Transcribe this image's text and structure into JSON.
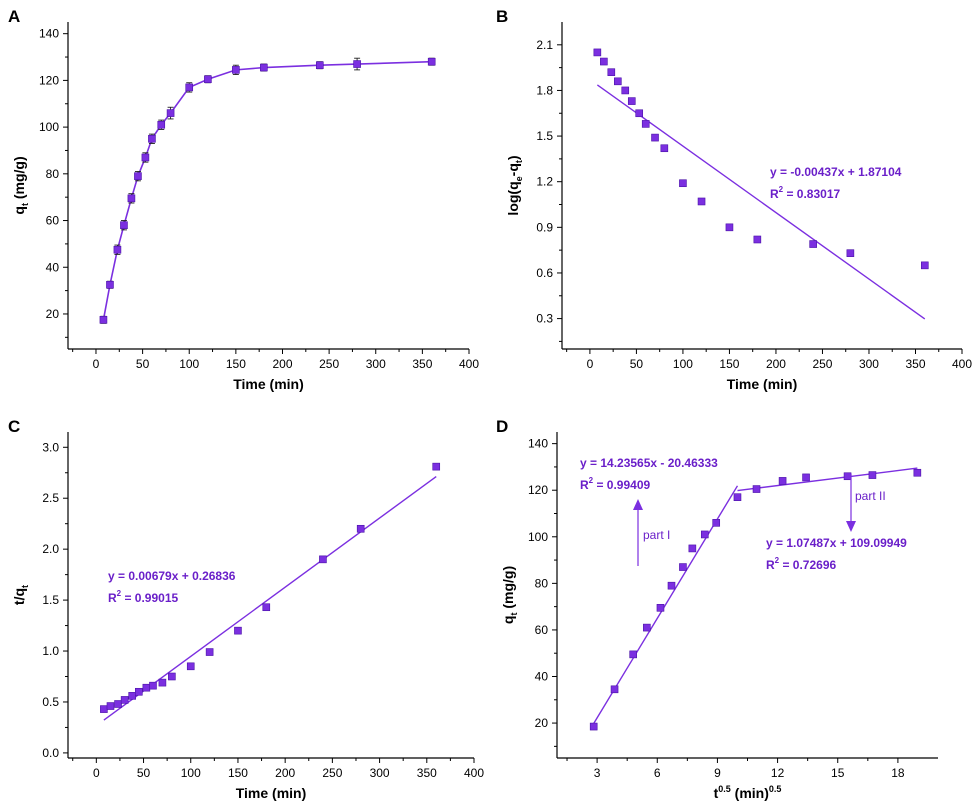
{
  "chart_data": [
    {
      "panel": "A",
      "type": "line",
      "xlabel": "Time (min)",
      "ylabel": "q",
      "ylabel_sub": "t",
      "ylabel_tail": " (mg/g)",
      "xlim": [
        -30,
        400
      ],
      "ylim": [
        5,
        145
      ],
      "xticks": [
        0,
        50,
        100,
        150,
        200,
        250,
        300,
        350,
        400
      ],
      "yticks": [
        20,
        40,
        60,
        80,
        100,
        120,
        140
      ],
      "x": [
        8,
        15,
        23,
        30,
        38,
        45,
        53,
        60,
        70,
        80,
        100,
        120,
        150,
        180,
        240,
        280,
        360
      ],
      "y": [
        17.5,
        32.5,
        47.5,
        58,
        69.5,
        79,
        87,
        95,
        101,
        106,
        117,
        120.5,
        124.5,
        125.5,
        126.5,
        127,
        128
      ],
      "err": [
        1.5,
        1.5,
        2,
        2,
        2,
        2,
        2,
        2,
        2,
        2.5,
        2,
        1.5,
        2,
        1.5,
        1.5,
        2.5,
        1.5
      ],
      "color": "#7b2fe0"
    },
    {
      "panel": "B",
      "type": "scatter",
      "xlabel": "Time (min)",
      "ylabel": "log(q",
      "ylabel_sub": "e",
      "ylabel_mid": "-q",
      "ylabel_sub2": "t",
      "ylabel_tail": ")",
      "xlim": [
        -30,
        400
      ],
      "ylim": [
        0.1,
        2.25
      ],
      "xticks": [
        0,
        50,
        100,
        150,
        200,
        250,
        300,
        350,
        400
      ],
      "yticks": [
        0.3,
        0.6,
        0.9,
        1.2,
        1.5,
        1.8,
        2.1
      ],
      "x": [
        8,
        15,
        23,
        30,
        38,
        45,
        53,
        60,
        70,
        80,
        100,
        120,
        150,
        180,
        240,
        280,
        360
      ],
      "y": [
        2.05,
        1.99,
        1.92,
        1.86,
        1.8,
        1.73,
        1.65,
        1.58,
        1.49,
        1.42,
        1.19,
        1.07,
        0.9,
        0.82,
        0.79,
        0.73,
        0.65
      ],
      "fit": {
        "x": [
          8,
          360
        ],
        "slope": -0.00437,
        "intercept": 1.87104
      },
      "equation": "y = -0.00437x + 1.87104",
      "r2_label": "R",
      "r2_value": " = 0.83017",
      "color": "#7b2fe0"
    },
    {
      "panel": "C",
      "type": "scatter",
      "xlabel": "Time (min)",
      "ylabel": "t/q",
      "ylabel_sub": "t",
      "ylabel_tail": "",
      "xlim": [
        -30,
        400
      ],
      "ylim": [
        -0.05,
        3.15
      ],
      "xticks": [
        0,
        50,
        100,
        150,
        200,
        250,
        300,
        350,
        400
      ],
      "yticks": [
        0.0,
        0.5,
        1.0,
        1.5,
        2.0,
        2.5,
        3.0
      ],
      "ytick_decimals": 1,
      "x": [
        8,
        15,
        23,
        30,
        38,
        45,
        53,
        60,
        70,
        80,
        100,
        120,
        150,
        180,
        240,
        280,
        360
      ],
      "y": [
        0.43,
        0.46,
        0.48,
        0.52,
        0.56,
        0.6,
        0.64,
        0.66,
        0.69,
        0.75,
        0.85,
        0.99,
        1.2,
        1.43,
        1.9,
        2.2,
        2.81
      ],
      "fit": {
        "x": [
          8,
          360
        ],
        "slope": 0.00679,
        "intercept": 0.26836
      },
      "equation": "y = 0.00679x + 0.26836",
      "r2_label": "R",
      "r2_value": " = 0.99015",
      "color": "#7b2fe0"
    },
    {
      "panel": "D",
      "type": "scatter",
      "xlabel_base": "t",
      "xlabel_sup": "0.5",
      "xlabel_mid": " (min)",
      "xlabel_sup2": "0.5",
      "ylabel": "q",
      "ylabel_sub": "t",
      "ylabel_tail": " (mg/g)",
      "xlim": [
        1.0,
        20.0
      ],
      "ylim": [
        5,
        145
      ],
      "xticks": [
        3,
        6,
        9,
        12,
        15,
        18
      ],
      "yticks": [
        20,
        40,
        60,
        80,
        100,
        120,
        140
      ],
      "x": [
        2.83,
        3.87,
        4.8,
        5.48,
        6.16,
        6.71,
        7.28,
        7.75,
        8.37,
        8.94,
        10.0,
        10.95,
        12.25,
        13.42,
        15.49,
        16.73,
        18.97
      ],
      "y": [
        18.5,
        34.5,
        49.5,
        61,
        69.5,
        79,
        87,
        95,
        101,
        106,
        117,
        120.5,
        124,
        125.5,
        126,
        126.5,
        127.5
      ],
      "fit1": {
        "x": [
          2.83,
          10.0
        ],
        "slope": 14.23565,
        "intercept": -20.46333
      },
      "fit2": {
        "x": [
          10.0,
          18.97
        ],
        "slope": 1.07487,
        "intercept": 109.09949
      },
      "equation1": "y = 14.23565x - 20.46333",
      "r2_label1": "R",
      "r2_value1": " = 0.99409",
      "equation2": "y = 1.07487x + 109.09949",
      "r2_label2": "R",
      "r2_value2": " = 0.72696",
      "part1": "part I",
      "part2": "part II",
      "color": "#7b2fe0"
    }
  ]
}
